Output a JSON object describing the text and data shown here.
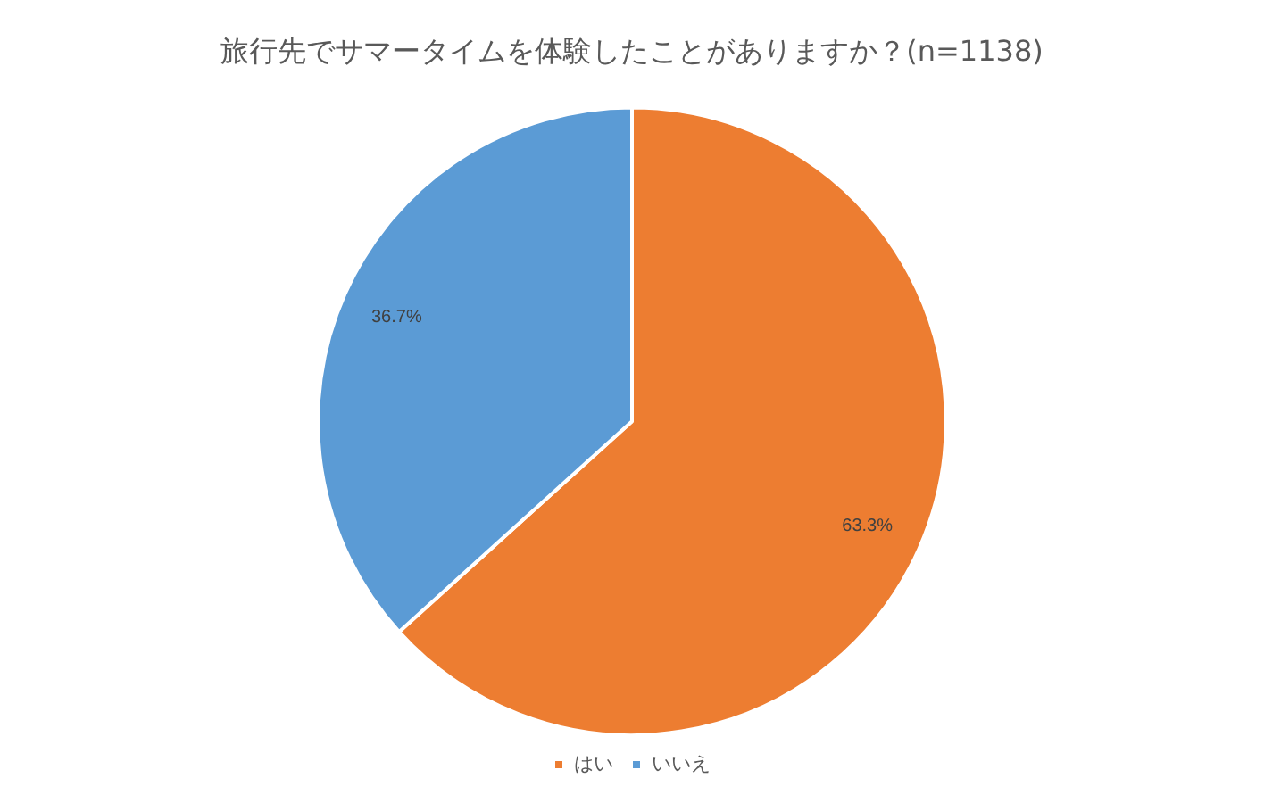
{
  "chart_data": {
    "type": "pie",
    "title": "旅行先でサマータイムを体験したことがありますか？(n=1138)",
    "categories": [
      "はい",
      "いいえ"
    ],
    "values": [
      63.3,
      36.7
    ],
    "colors": [
      "#ed7d31",
      "#5b9bd5"
    ],
    "value_labels": [
      "63.3%",
      "36.7%"
    ],
    "legend": "bottom"
  }
}
